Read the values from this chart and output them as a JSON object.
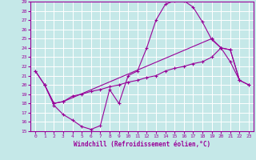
{
  "xlabel": "Windchill (Refroidissement éolien,°C)",
  "bg_color": "#c5e8e8",
  "line_color": "#990099",
  "grid_color": "#ffffff",
  "xlim": [
    -0.5,
    23.5
  ],
  "ylim": [
    15,
    29
  ],
  "xticks": [
    0,
    1,
    2,
    3,
    4,
    5,
    6,
    7,
    8,
    9,
    10,
    11,
    12,
    13,
    14,
    15,
    16,
    17,
    18,
    19,
    20,
    21,
    22,
    23
  ],
  "yticks": [
    15,
    16,
    17,
    18,
    19,
    20,
    21,
    22,
    23,
    24,
    25,
    26,
    27,
    28,
    29
  ],
  "curve1_x": [
    0,
    1,
    2,
    3,
    4,
    5,
    6,
    7,
    8,
    9,
    10,
    11,
    12,
    13,
    14,
    15,
    16,
    17,
    18,
    19,
    20,
    21,
    22
  ],
  "curve1_y": [
    21.5,
    20.0,
    17.8,
    16.8,
    16.2,
    15.5,
    15.2,
    15.6,
    19.5,
    18.0,
    21.0,
    21.5,
    24.0,
    27.0,
    28.7,
    29.1,
    29.1,
    28.4,
    26.8,
    24.9,
    24.0,
    22.5,
    20.5
  ],
  "curve2_x": [
    1,
    2,
    3,
    4,
    5,
    6,
    7,
    8,
    9,
    10,
    11,
    12,
    13,
    14,
    15,
    16,
    17,
    18,
    19,
    20,
    21,
    22,
    23
  ],
  "curve2_y": [
    20.0,
    18.0,
    18.2,
    18.8,
    19.0,
    19.3,
    19.5,
    19.8,
    20.0,
    20.3,
    20.5,
    20.8,
    21.0,
    21.5,
    21.8,
    22.0,
    22.3,
    22.5,
    23.0,
    24.0,
    23.8,
    20.5,
    20.0
  ],
  "curve3_x": [
    0,
    1,
    2,
    3,
    19,
    20,
    21,
    22,
    23
  ],
  "curve3_y": [
    21.5,
    20.0,
    18.0,
    18.2,
    25.0,
    24.0,
    23.8,
    20.5,
    20.0
  ]
}
